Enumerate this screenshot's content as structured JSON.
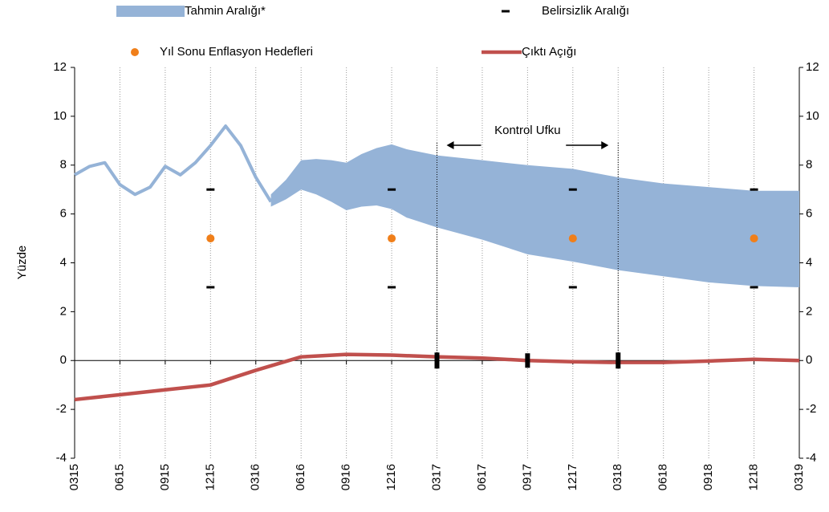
{
  "chart_data": {
    "type": "line",
    "y_label": "Yüzde",
    "xlim": [
      0,
      48
    ],
    "xticks": [
      {
        "value": 0,
        "label": "0315"
      },
      {
        "value": 3,
        "label": "0615"
      },
      {
        "value": 6,
        "label": "0915"
      },
      {
        "value": 9,
        "label": "1215"
      },
      {
        "value": 12,
        "label": "0316"
      },
      {
        "value": 15,
        "label": "0616"
      },
      {
        "value": 18,
        "label": "0916"
      },
      {
        "value": 21,
        "label": "1216"
      },
      {
        "value": 24,
        "label": "0317"
      },
      {
        "value": 27,
        "label": "0617"
      },
      {
        "value": 30,
        "label": "0917"
      },
      {
        "value": 33,
        "label": "1217"
      },
      {
        "value": 36,
        "label": "0318"
      },
      {
        "value": 39,
        "label": "0618"
      },
      {
        "value": 42,
        "label": "0918"
      },
      {
        "value": 45,
        "label": "1218"
      },
      {
        "value": 48,
        "label": "0319"
      }
    ],
    "ylim": [
      -4,
      12
    ],
    "yticks": [
      -4,
      -2,
      0,
      2,
      4,
      6,
      8,
      10,
      12
    ],
    "y2lim": [
      -4,
      12
    ],
    "y2ticks": [
      -4,
      -2,
      0,
      2,
      4,
      6,
      8,
      10,
      12
    ],
    "grid": true,
    "series": [
      {
        "name": "Tahmin Aralığı*",
        "type": "band",
        "color": "#95b3d7",
        "line_x": [
          0,
          1,
          2,
          3,
          4,
          5,
          6,
          7,
          8,
          9,
          10,
          11,
          12,
          13
        ],
        "line_values": [
          7.6,
          7.95,
          8.1,
          7.2,
          6.8,
          7.1,
          7.95,
          7.6,
          8.1,
          8.8,
          9.6,
          8.8,
          7.5,
          6.5
        ],
        "x": [
          13,
          14,
          15,
          16,
          17,
          18,
          19,
          20,
          21,
          22,
          24,
          27,
          30,
          33,
          36,
          39,
          42,
          45,
          48
        ],
        "upper": [
          6.8,
          7.4,
          8.2,
          8.25,
          8.2,
          8.1,
          8.45,
          8.7,
          8.85,
          8.65,
          8.4,
          8.2,
          8.0,
          7.85,
          7.5,
          7.25,
          7.1,
          6.95,
          6.95
        ],
        "lower": [
          6.3,
          6.6,
          7.0,
          6.8,
          6.5,
          6.15,
          6.3,
          6.35,
          6.2,
          5.85,
          5.45,
          4.95,
          4.35,
          4.05,
          3.7,
          3.45,
          3.2,
          3.05,
          3.0
        ]
      },
      {
        "name": "Belirsizlik Aralığı",
        "type": "range",
        "color": "#000000",
        "x": [
          9,
          21,
          33,
          45
        ],
        "lower": [
          3,
          3,
          3,
          3
        ],
        "upper": [
          7,
          7,
          7,
          7
        ]
      },
      {
        "name": "Yıl Sonu Enflasyon Hedefleri",
        "type": "scatter",
        "color": "#f07f1a",
        "x": [
          9,
          21,
          33,
          45
        ],
        "values": [
          5,
          5,
          5,
          5
        ]
      },
      {
        "name": "Çıktı Açığı",
        "type": "line",
        "color": "#c0504d",
        "x": [
          0,
          3,
          6,
          9,
          12,
          15,
          18,
          21,
          24,
          27,
          30,
          33,
          36,
          39,
          42,
          45,
          48
        ],
        "values": [
          -1.6,
          -1.4,
          -1.2,
          -1.0,
          -0.4,
          0.15,
          0.25,
          0.22,
          0.15,
          0.1,
          0.0,
          -0.05,
          -0.08,
          -0.08,
          -0.02,
          0.05,
          0.0
        ]
      }
    ],
    "annotations": [
      {
        "text": "Kontrol Ufku",
        "x_start": 24,
        "x_end": 36
      }
    ]
  }
}
